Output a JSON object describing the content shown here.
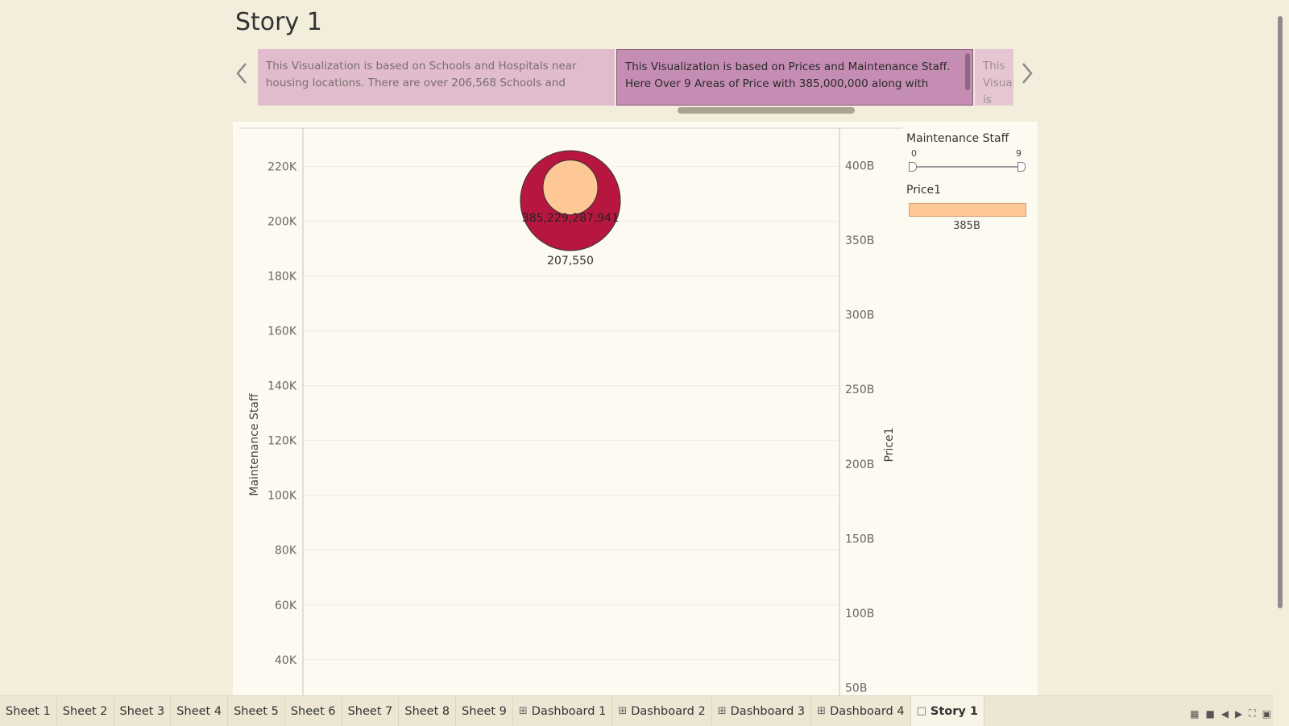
{
  "story": {
    "title": "Story 1"
  },
  "captions": [
    {
      "text": "This Visualization is based on Schools and Hospitals near housing locations. There are over 206,568 Schools and"
    },
    {
      "text": "This Visualization is based on Prices and Maintenance Staff. Here Over 9 Areas of Price with 385,000,000 along with"
    },
    {
      "text": "This Visualization is based on the Lo"
    }
  ],
  "nav": {
    "prev_icon": "chevron-left-icon",
    "next_icon": "chevron-right-icon"
  },
  "chart_data": {
    "type": "scatter",
    "left_axis": {
      "label": "Maintenance Staff",
      "ticks": [
        "40K",
        "60K",
        "80K",
        "100K",
        "120K",
        "140K",
        "160K",
        "180K",
        "200K",
        "220K"
      ],
      "values": [
        40000,
        60000,
        80000,
        100000,
        120000,
        140000,
        160000,
        180000,
        200000,
        220000
      ],
      "range": [
        27000,
        234000
      ]
    },
    "right_axis": {
      "label": "Price1",
      "ticks": [
        "50B",
        "100B",
        "150B",
        "200B",
        "250B",
        "300B",
        "350B",
        "400B"
      ],
      "values": [
        50,
        100,
        150,
        200,
        250,
        300,
        350,
        400
      ],
      "range": [
        45,
        425
      ]
    },
    "points": [
      {
        "maintenance_staff": 207550,
        "maintenance_label": "207,550",
        "price": 385229287941,
        "price_label": "385,229,287,941",
        "price_billions": 385.23
      }
    ],
    "colors": {
      "outer_circle": "#b7173f",
      "inner_circle": "#fec796"
    },
    "grid": true
  },
  "legend": {
    "maintenance": {
      "title": "Maintenance Staff",
      "min": "0",
      "max": "9"
    },
    "price": {
      "title": "Price1",
      "value": "385B"
    }
  },
  "tabs": [
    {
      "label": "Sheet 1",
      "icon": ""
    },
    {
      "label": "Sheet 2",
      "icon": ""
    },
    {
      "label": "Sheet 3",
      "icon": ""
    },
    {
      "label": "Sheet 4",
      "icon": ""
    },
    {
      "label": "Sheet 5",
      "icon": ""
    },
    {
      "label": "Sheet 6",
      "icon": ""
    },
    {
      "label": "Sheet 7",
      "icon": ""
    },
    {
      "label": "Sheet 8",
      "icon": ""
    },
    {
      "label": "Sheet 9",
      "icon": ""
    },
    {
      "label": "Dashboard 1",
      "icon": "dashboard-icon"
    },
    {
      "label": "Dashboard 2",
      "icon": "dashboard-icon"
    },
    {
      "label": "Dashboard 3",
      "icon": "dashboard-icon"
    },
    {
      "label": "Dashboard 4",
      "icon": "dashboard-icon"
    },
    {
      "label": "Story 1",
      "icon": "story-icon",
      "active": true
    }
  ],
  "status_icons": [
    "grid-view-icon",
    "single-view-icon",
    "previous-icon",
    "next-icon",
    "fullscreen-icon",
    "present-icon"
  ]
}
